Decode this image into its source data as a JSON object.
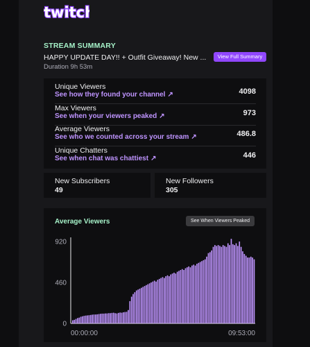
{
  "brand": {
    "logo_text": "twitch",
    "accent": "#9147ff",
    "link": "#bf94ff",
    "summary_green": "#a6f2c9"
  },
  "summary": {
    "heading": "STREAM SUMMARY",
    "title": "HAPPY UPDATE DAY!! + Outfit Giveaway! New ...",
    "duration": "Duration 9h 53m",
    "button_label": "View Full Summary"
  },
  "stats": [
    {
      "label": "Unique Viewers",
      "link": "See how they found your channel",
      "value": "4098"
    },
    {
      "label": "Max Viewers",
      "link": "See when your viewers peaked",
      "value": "973"
    },
    {
      "label": "Average Viewers",
      "link": "See who we counted across your stream",
      "value": "486.8"
    },
    {
      "label": "Unique Chatters",
      "link": "See when chat was chattiest",
      "value": "446"
    }
  ],
  "subscribers": {
    "label": "New Subscribers",
    "value": "49"
  },
  "followers": {
    "label": "New Followers",
    "value": "305"
  },
  "chart_card": {
    "title": "Average Viewers",
    "button_label": "See When Viewers Peaked"
  },
  "chart_data": {
    "type": "bar",
    "title": "Average Viewers",
    "y_ticks": [
      "920",
      "460",
      "0"
    ],
    "ylim": [
      0,
      920
    ],
    "x_ticks": [
      "00:00:00",
      "09:53:00"
    ],
    "bar_color": "#bf94ff",
    "values": [
      35,
      40,
      50,
      60,
      65,
      75,
      80,
      85,
      88,
      90,
      92,
      95,
      98,
      100,
      100,
      102,
      105,
      108,
      110,
      110,
      112,
      112,
      115,
      115,
      118,
      120,
      115,
      112,
      118,
      122,
      120,
      125,
      128,
      130,
      150,
      250,
      300,
      330,
      350,
      370,
      380,
      390,
      400,
      410,
      420,
      430,
      440,
      450,
      460,
      470,
      480,
      470,
      490,
      500,
      510,
      520,
      510,
      530,
      540,
      530,
      550,
      560,
      570,
      560,
      580,
      590,
      600,
      610,
      600,
      620,
      630,
      640,
      630,
      650,
      660,
      650,
      670,
      680,
      690,
      700,
      710,
      720,
      750,
      790,
      800,
      820,
      860,
      880,
      870,
      880,
      870,
      860,
      880,
      870,
      860,
      900,
      880,
      950,
      890,
      880,
      900,
      870,
      920,
      860,
      810,
      780,
      760,
      740,
      740,
      750,
      740,
      720
    ]
  }
}
